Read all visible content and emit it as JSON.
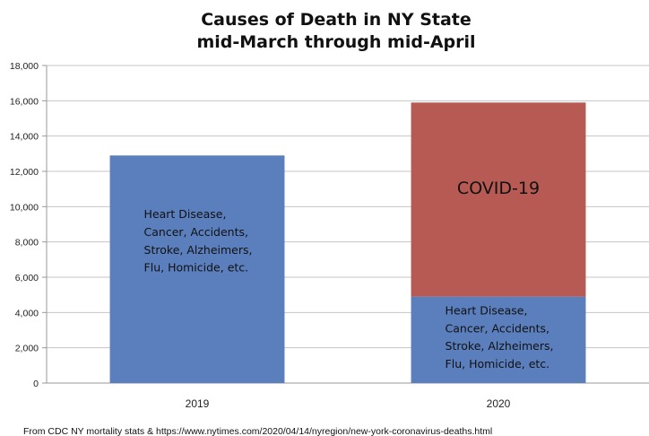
{
  "chart_data": {
    "type": "bar",
    "stacked": true,
    "title_lines": [
      "Causes of Death in NY State",
      "mid-March through mid-April"
    ],
    "categories": [
      "2019",
      "2020"
    ],
    "ylim": [
      0,
      18000
    ],
    "yticks": [
      0,
      2000,
      4000,
      6000,
      8000,
      10000,
      12000,
      14000,
      16000,
      18000
    ],
    "ytick_labels": [
      "0",
      "2,000",
      "4,000",
      "6,000",
      "8,000",
      "10,000",
      "12,000",
      "14,000",
      "16,000",
      "18,000"
    ],
    "grid": true,
    "series": [
      {
        "key": "other",
        "color": "#5b7fbd",
        "values": [
          12900,
          4900
        ],
        "annotation_lines": [
          "Heart Disease,",
          "Cancer, Accidents,",
          "Stroke, Alzheimers,",
          "Flu, Homicide, etc."
        ]
      },
      {
        "key": "covid",
        "color": "#b65a53",
        "values": [
          0,
          11000
        ],
        "label": "COVID-19"
      }
    ],
    "source": "From CDC NY mortality stats & https://www.nytimes.com/2020/04/14/nyregion/new-york-coronavirus-deaths.html"
  }
}
